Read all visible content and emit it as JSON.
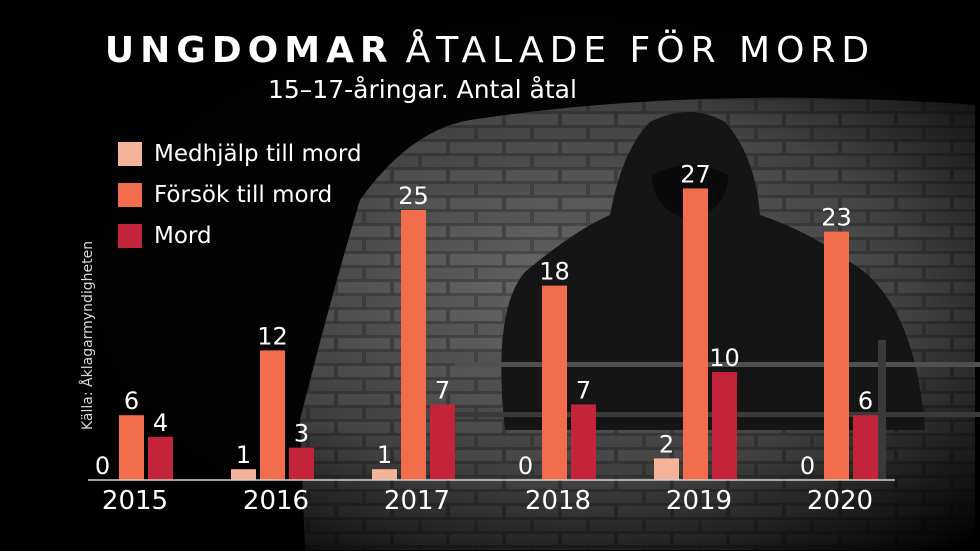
{
  "title_bold": "UNGDOMAR",
  "title_rest": "ÅTALADE FÖR MORD",
  "subtitle": "15–17-åringar. Antal åtal",
  "source": "Källa: Åklagarmyndigheten",
  "colors": {
    "medhjalp": "#f5b49a",
    "forsok": "#f26d4b",
    "mord": "#c4243a",
    "background": "#050505",
    "text": "#ffffff"
  },
  "chart_data": {
    "type": "bar",
    "title": "UNGDOMAR ÅTALADE FÖR MORD",
    "subtitle": "15–17-åringar. Antal åtal",
    "categories": [
      "2015",
      "2016",
      "2017",
      "2018",
      "2019",
      "2020"
    ],
    "series": [
      {
        "name": "Medhjälp till mord",
        "values": [
          0,
          1,
          1,
          0,
          2,
          0
        ]
      },
      {
        "name": "Försök till mord",
        "values": [
          6,
          12,
          25,
          18,
          27,
          23
        ]
      },
      {
        "name": "Mord",
        "values": [
          4,
          3,
          7,
          7,
          10,
          6
        ]
      }
    ],
    "ylim": [
      0,
      30
    ],
    "grid": false,
    "legend": "top-left",
    "source": "Källa: Åklagarmyndigheten"
  }
}
